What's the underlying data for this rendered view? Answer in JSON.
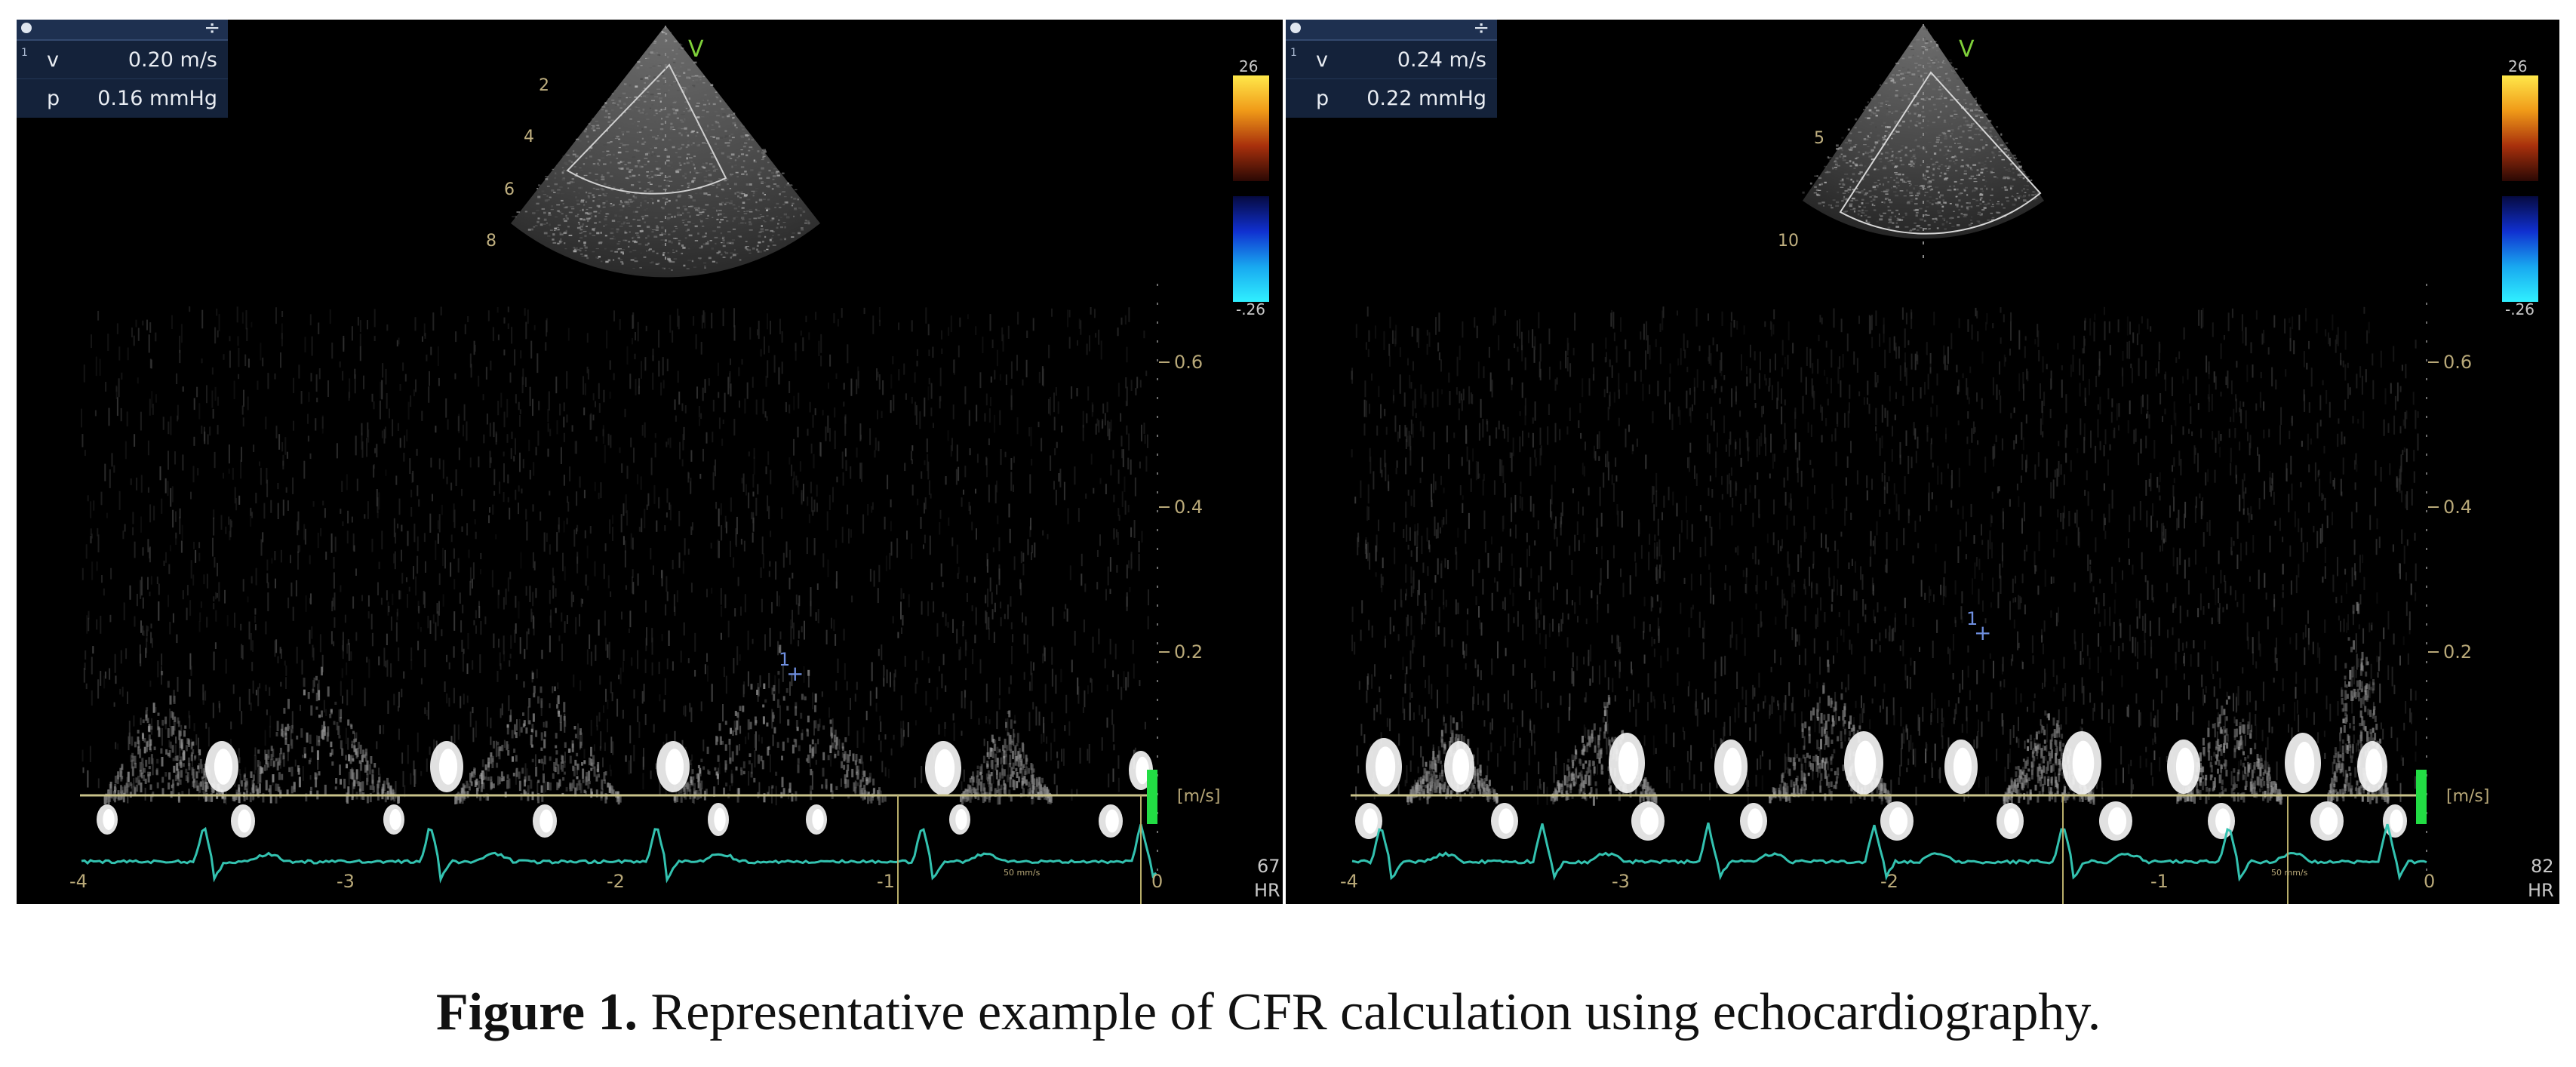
{
  "panels": [
    {
      "measurements": {
        "v_label": "v",
        "v_value": "0.20 m/s",
        "p_label": "p",
        "p_value": "0.16 mmHg",
        "index": "1"
      },
      "depth_marks": [
        "2",
        "4",
        "6",
        "8"
      ],
      "velocity_ticks": [
        "0.6",
        "0.4",
        "0.2",
        "[m/s]"
      ],
      "time_ticks": [
        "-4",
        "-3",
        "-2",
        "-1",
        "0"
      ],
      "sweep": "50 mm/s",
      "colorbar": {
        "top": "26",
        "bottom": "-.26"
      },
      "hr": "67",
      "hr_label": "HR",
      "v_marker": "V"
    },
    {
      "measurements": {
        "v_label": "v",
        "v_value": "0.24 m/s",
        "p_label": "p",
        "p_value": "0.22 mmHg",
        "index": "1"
      },
      "depth_marks": [
        "5",
        "10"
      ],
      "velocity_ticks": [
        "0.6",
        "0.4",
        "0.2",
        "[m/s]"
      ],
      "time_ticks": [
        "-4",
        "-3",
        "-2",
        "-1",
        "0"
      ],
      "sweep": "50 mm/s",
      "colorbar": {
        "top": "26",
        "bottom": "-.26"
      },
      "hr": "82",
      "hr_label": "HR",
      "v_marker": "V"
    }
  ],
  "caption": {
    "label": "Figure 1.",
    "text": " Representative example of CFR calculation using echocardiography."
  },
  "colors": {
    "ecg": "#33c2b0",
    "axis": "#b8a878",
    "baseline": "#c9c28a",
    "marker_green": "#22dd44",
    "cursor_blue": "#6f8fe0"
  }
}
